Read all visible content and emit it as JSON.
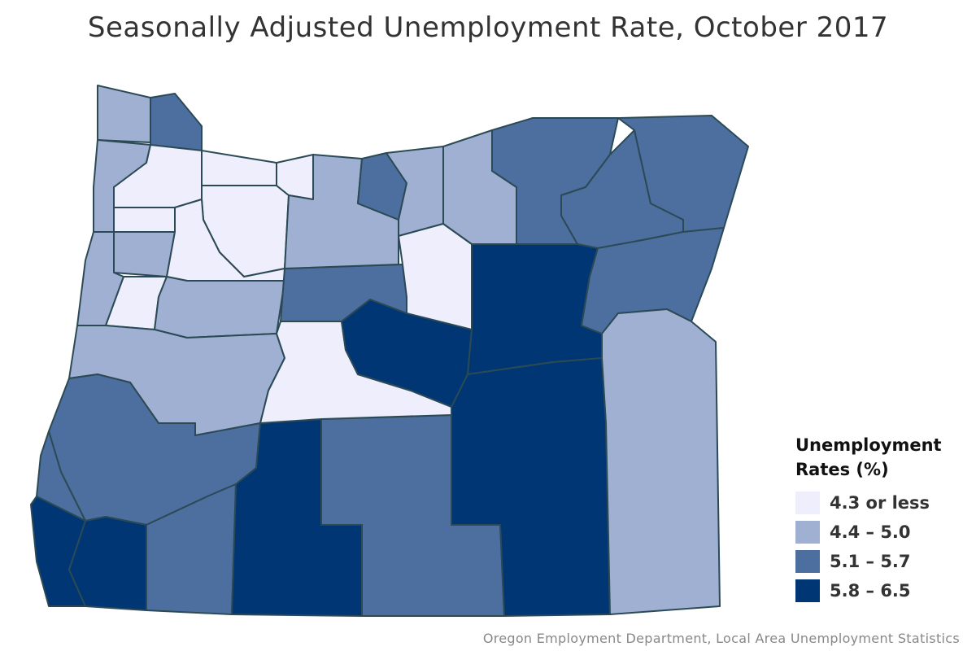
{
  "title": "Seasonally Adjusted Unemployment Rate, October 2017",
  "legend": {
    "title": "Unemployment Rates (%)",
    "items": [
      {
        "label": "4.3 or less",
        "color": "#eeeefc"
      },
      {
        "label": "4.4 – 5.0",
        "color": "#9fb0d3"
      },
      {
        "label": "5.1 – 5.7",
        "color": "#4d6fa0"
      },
      {
        "label": "5.8 – 6.5",
        "color": "#003674"
      }
    ]
  },
  "source": "Oregon Employment Department, Local Area Unemployment Statistics"
}
